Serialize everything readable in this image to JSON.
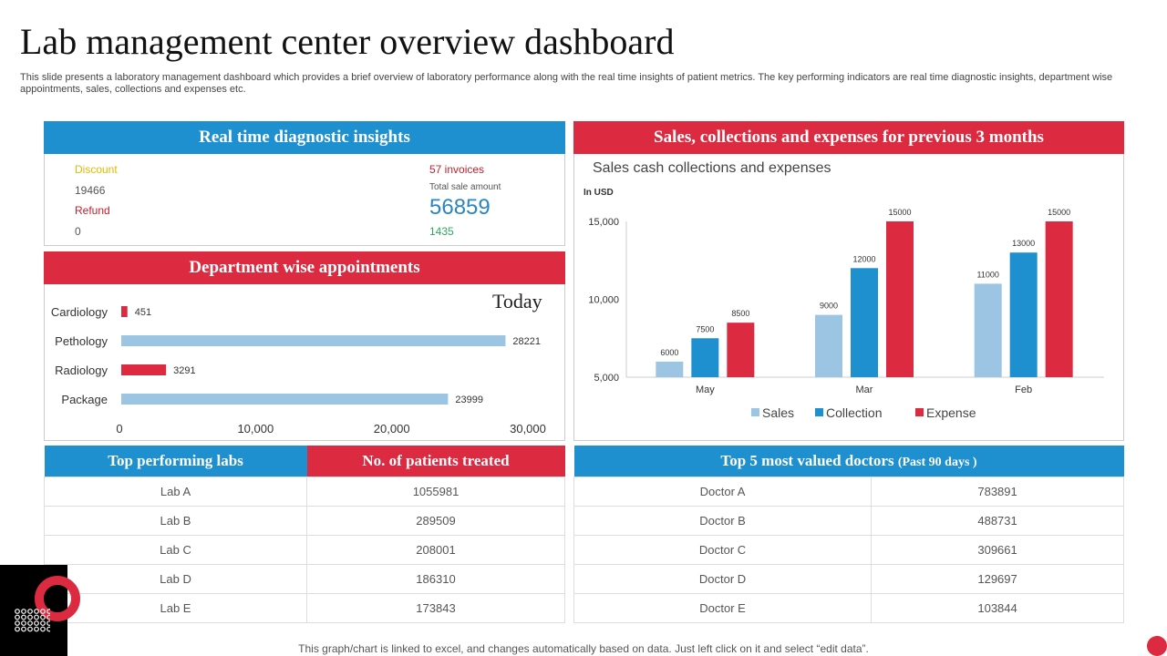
{
  "title": "Lab management center overview dashboard",
  "description": "This slide presents a laboratory management dashboard which provides a brief overview of laboratory performance along with the real time insights of patient metrics. The key performing indicators are real time diagnostic insights, department wise appointments, sales, collections and expenses etc.",
  "insights": {
    "header": "Real time diagnostic insights",
    "discount_label": "Discount",
    "discount_value": "19466",
    "refund_label": "Refund",
    "refund_value": "0",
    "invoices": "57 invoices",
    "total_label": "Total sale amount",
    "total_value": "56859",
    "extra_value": "1435"
  },
  "appointments": {
    "header": "Department wise appointments",
    "today": "Today"
  },
  "sales": {
    "header": "Sales, collections and expenses for previous 3 months"
  },
  "labs": {
    "col1": "Top performing labs",
    "col2": "No. of patients treated",
    "rows": [
      [
        "Lab A",
        "1055981"
      ],
      [
        "Lab B",
        "289509"
      ],
      [
        "Lab C",
        "208001"
      ],
      [
        "Lab D",
        "186310"
      ],
      [
        "Lab E",
        "173843"
      ]
    ]
  },
  "doctors": {
    "header": "Top 5 most valued doctors",
    "header_sub": "(Past 90 days )",
    "rows": [
      [
        "Doctor A",
        "783891"
      ],
      [
        "Doctor B",
        "488731"
      ],
      [
        "Doctor C",
        "309661"
      ],
      [
        "Doctor D",
        "129697"
      ],
      [
        "Doctor E",
        "103844"
      ]
    ]
  },
  "footer": "This graph/chart is linked to excel,  and changes automatically based on data. Just left click on it and select “edit data”.",
  "colors": {
    "blue": "#1e8fcf",
    "red": "#dc2a40",
    "light_blue": "#9cc5e3"
  },
  "chart_data": [
    {
      "type": "bar",
      "orientation": "horizontal",
      "categories": [
        "Cardiology",
        "Pethology",
        "Radiology",
        "Package"
      ],
      "values": [
        451,
        28221,
        3291,
        23999
      ],
      "bar_colors": [
        "#dc2a40",
        "#9cc5e3",
        "#dc2a40",
        "#9cc5e3"
      ],
      "xlim": [
        0,
        30000
      ],
      "xticks": [
        "0",
        "10,000",
        "20,000",
        "30,000"
      ]
    },
    {
      "type": "bar",
      "title": "Sales cash collections and expenses",
      "ylabel": "In USD",
      "categories": [
        "May",
        "Mar",
        "Feb"
      ],
      "series": [
        {
          "name": "Sales",
          "color": "#9cc5e3",
          "values": [
            6000,
            9000,
            11000
          ]
        },
        {
          "name": "Collection",
          "color": "#1e8fcf",
          "values": [
            7500,
            12000,
            13000
          ]
        },
        {
          "name": "Expense",
          "color": "#dc2a40",
          "values": [
            8500,
            15000,
            15000
          ]
        }
      ],
      "ylim": [
        5000,
        15000
      ],
      "yticks": [
        "5,000",
        "10,000",
        "15,000"
      ],
      "legend": "bottom"
    }
  ]
}
